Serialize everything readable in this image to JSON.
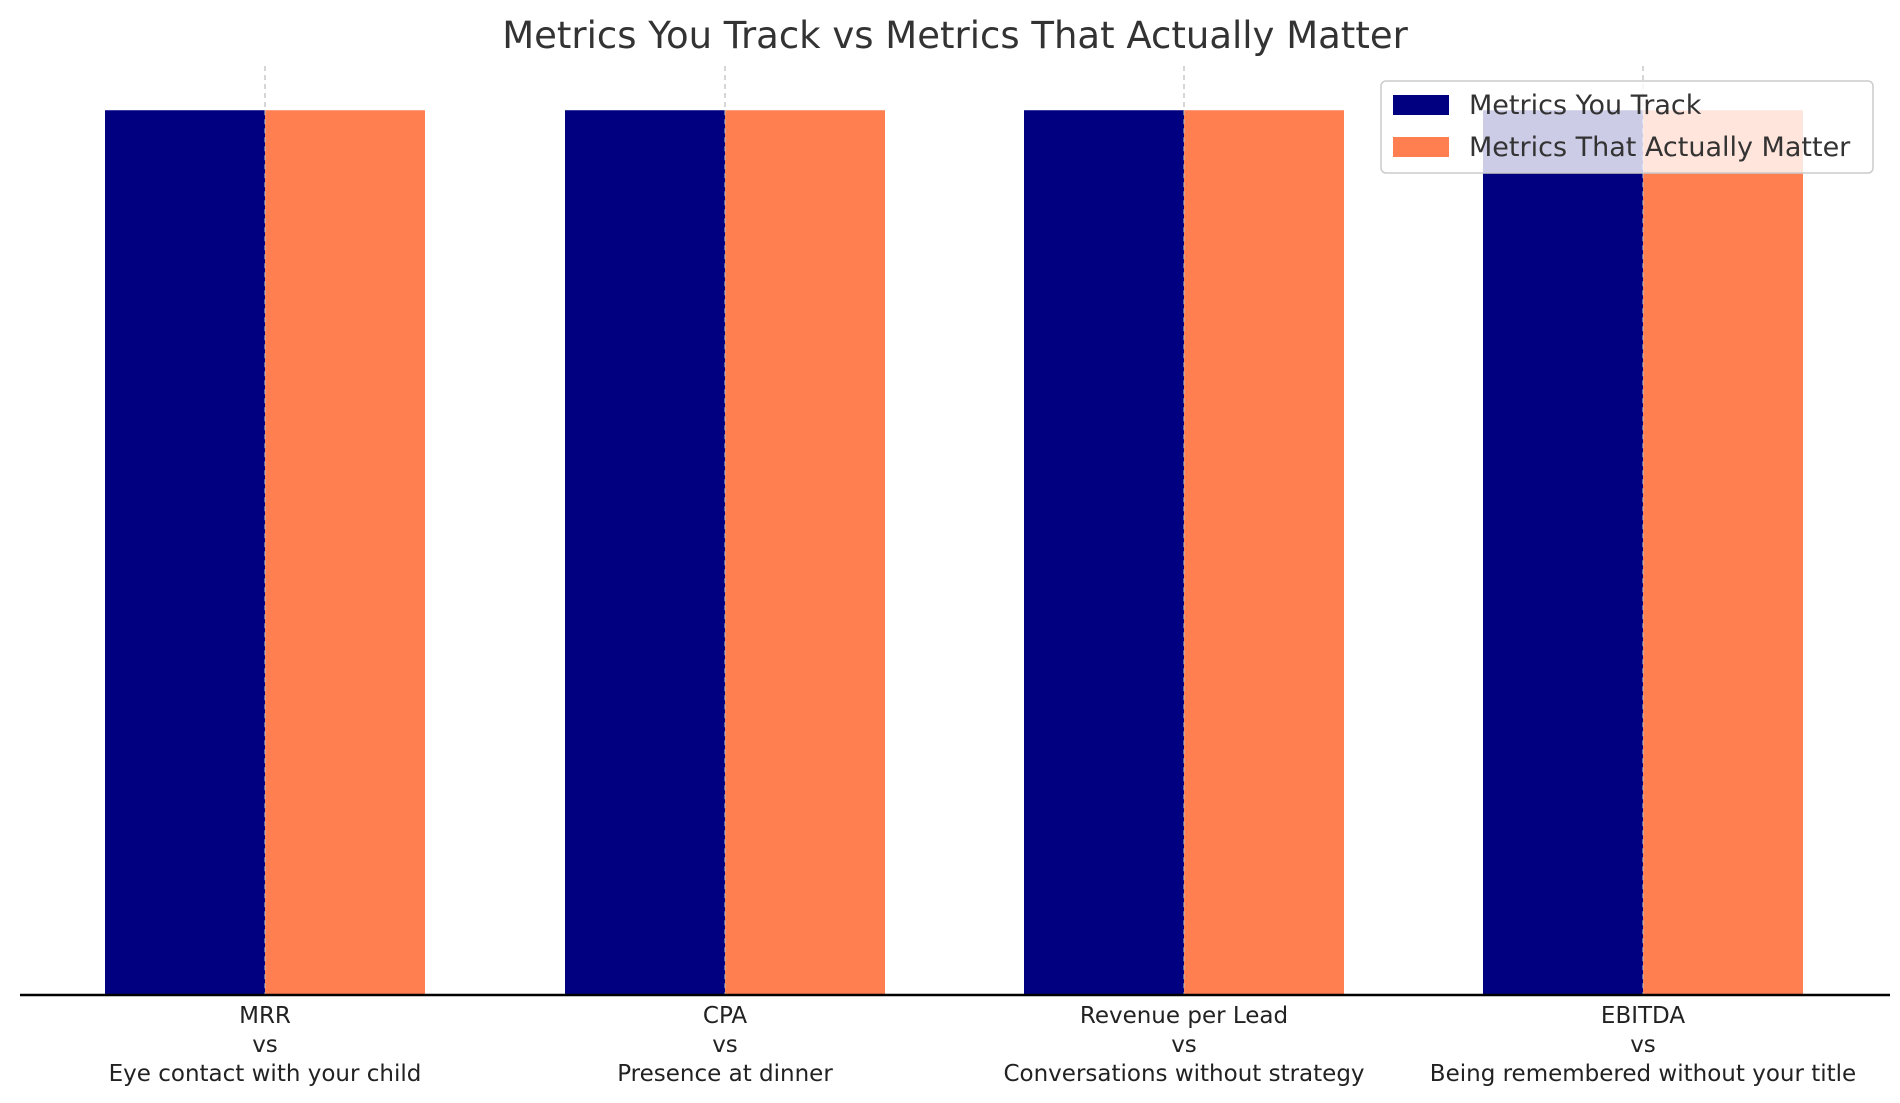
{
  "chart_data": {
    "type": "bar",
    "title": "Metrics You Track vs Metrics That Actually Matter",
    "xlabel": "",
    "ylabel": "",
    "categories": [
      [
        "MRR",
        "vs",
        "Eye contact with your child"
      ],
      [
        "CPA",
        "vs",
        "Presence at dinner"
      ],
      [
        "Revenue per Lead",
        "vs",
        "Conversations without strategy"
      ],
      [
        "EBITDA",
        "vs",
        "Being remembered without your title"
      ]
    ],
    "series": [
      {
        "name": "Metrics You Track",
        "color": "#000080",
        "values": [
          1,
          1,
          1,
          1
        ]
      },
      {
        "name": "Metrics That Actually Matter",
        "color": "#ff7f50",
        "values": [
          1,
          1,
          1,
          1
        ]
      }
    ],
    "ylim": [
      0,
      1.05
    ],
    "grid": "x-only dashed",
    "legend": "upper-right",
    "colors": {
      "title": "#333333",
      "tick_labels": "#222222",
      "axis_line": "#000000",
      "grid": "#bbbbbb",
      "legend_border": "#cccccc"
    }
  }
}
